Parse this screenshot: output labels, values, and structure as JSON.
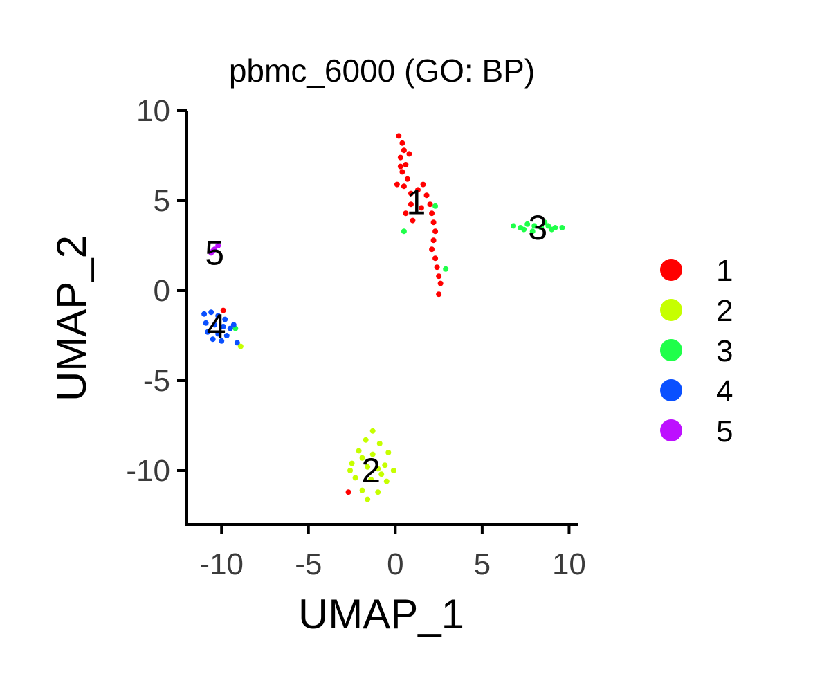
{
  "chart_data": {
    "type": "scatter",
    "title": "pbmc_6000 (GO: BP)",
    "xlabel": "UMAP_1",
    "ylabel": "UMAP_2",
    "xlim": [
      -12,
      10.5
    ],
    "ylim": [
      -13,
      10
    ],
    "xticks": [
      -10,
      -5,
      0,
      5,
      10
    ],
    "yticks": [
      -10,
      -5,
      0,
      5,
      10
    ],
    "x_tick_labels": [
      "-10",
      "-5",
      "0",
      "5",
      "10"
    ],
    "y_tick_labels": [
      "-10",
      "-5",
      "0",
      "5",
      "10"
    ],
    "grid": false,
    "legend_position": "right",
    "series": [
      {
        "name": "1",
        "color": "#FF0000",
        "label_position": [
          1.2,
          4.9
        ],
        "points": [
          [
            0.2,
            8.6
          ],
          [
            0.4,
            8.2
          ],
          [
            0.5,
            7.8
          ],
          [
            0.3,
            7.4
          ],
          [
            0.6,
            7.0
          ],
          [
            0.4,
            6.6
          ],
          [
            0.7,
            6.2
          ],
          [
            0.5,
            5.8
          ],
          [
            0.9,
            5.4
          ],
          [
            1.3,
            5.6
          ],
          [
            1.6,
            5.9
          ],
          [
            1.8,
            5.3
          ],
          [
            2.0,
            4.8
          ],
          [
            2.1,
            4.3
          ],
          [
            2.2,
            3.8
          ],
          [
            2.3,
            3.3
          ],
          [
            2.2,
            2.8
          ],
          [
            2.1,
            2.3
          ],
          [
            2.3,
            1.8
          ],
          [
            2.4,
            1.3
          ],
          [
            2.5,
            0.8
          ],
          [
            2.6,
            0.4
          ],
          [
            2.5,
            -0.2
          ],
          [
            0.6,
            4.3
          ],
          [
            1.0,
            3.9
          ],
          [
            0.9,
            4.8
          ],
          [
            0.3,
            6.9
          ],
          [
            0.8,
            7.6
          ],
          [
            0.1,
            5.9
          ],
          [
            1.5,
            4.6
          ]
        ]
      },
      {
        "name": "2",
        "color": "#C6FF00",
        "label_position": [
          -1.4,
          -10.0
        ],
        "points": [
          [
            -1.3,
            -7.8
          ],
          [
            -1.7,
            -8.3
          ],
          [
            -0.9,
            -8.5
          ],
          [
            -2.1,
            -8.9
          ],
          [
            -1.3,
            -9.1
          ],
          [
            -0.4,
            -9.0
          ],
          [
            -2.5,
            -9.6
          ],
          [
            -1.6,
            -9.8
          ],
          [
            -0.6,
            -9.7
          ],
          [
            -0.1,
            -10.0
          ],
          [
            -2.3,
            -10.4
          ],
          [
            -1.4,
            -10.5
          ],
          [
            -0.5,
            -10.6
          ],
          [
            -1.9,
            -11.1
          ],
          [
            -1.0,
            -11.2
          ],
          [
            -1.6,
            -11.6
          ],
          [
            -0.8,
            -10.2
          ],
          [
            -1.9,
            -9.3
          ],
          [
            -1.0,
            -9.9
          ],
          [
            -2.6,
            -10.0
          ]
        ]
      },
      {
        "name": "3",
        "color": "#1FFF4A",
        "label_position": [
          8.2,
          3.5
        ],
        "points": [
          [
            6.8,
            3.6
          ],
          [
            7.2,
            3.5
          ],
          [
            7.6,
            3.7
          ],
          [
            8.0,
            3.6
          ],
          [
            8.4,
            3.5
          ],
          [
            8.8,
            3.6
          ],
          [
            9.2,
            3.5
          ],
          [
            9.6,
            3.5
          ],
          [
            7.4,
            3.4
          ],
          [
            8.6,
            3.8
          ],
          [
            9.0,
            3.4
          ],
          [
            7.9,
            3.3
          ],
          [
            0.5,
            3.3
          ],
          [
            2.3,
            4.7
          ],
          [
            2.9,
            1.2
          ],
          [
            -9.2,
            -2.1
          ]
        ]
      },
      {
        "name": "4",
        "color": "#0A50FF",
        "label_position": [
          -10.3,
          -2.0
        ],
        "points": [
          [
            -11.0,
            -1.3
          ],
          [
            -10.6,
            -1.2
          ],
          [
            -10.2,
            -1.4
          ],
          [
            -9.8,
            -1.6
          ],
          [
            -10.9,
            -1.8
          ],
          [
            -10.4,
            -1.9
          ],
          [
            -9.9,
            -2.0
          ],
          [
            -9.5,
            -2.1
          ],
          [
            -10.8,
            -2.3
          ],
          [
            -10.2,
            -2.4
          ],
          [
            -9.7,
            -2.5
          ],
          [
            -10.5,
            -2.7
          ],
          [
            -10.0,
            -2.8
          ],
          [
            -9.3,
            -1.9
          ],
          [
            -9.1,
            -2.9
          ]
        ]
      },
      {
        "name": "5",
        "color": "#BD10FF",
        "label_position": [
          -10.4,
          2.1
        ],
        "points": [
          [
            -10.6,
            2.1
          ],
          [
            -10.4,
            2.3
          ],
          [
            -10.2,
            2.5
          ],
          [
            -10.5,
            2.2
          ]
        ]
      }
    ],
    "stray_points": [
      {
        "series": "1",
        "x": -9.9,
        "y": -1.1
      },
      {
        "series": "1",
        "x": -2.7,
        "y": -11.2
      },
      {
        "series": "2",
        "x": -8.9,
        "y": -3.1
      }
    ]
  }
}
